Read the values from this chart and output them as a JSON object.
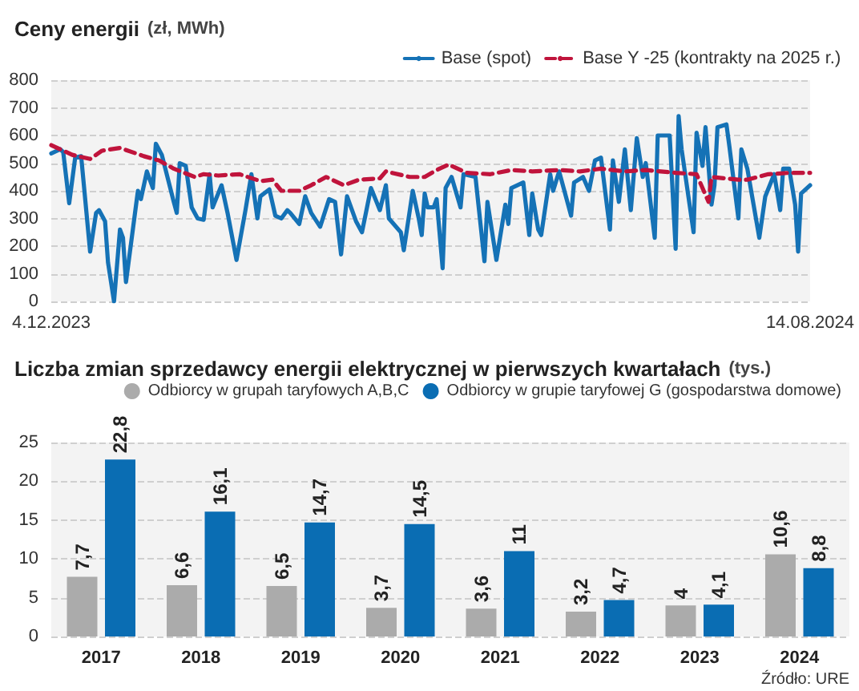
{
  "chart_data": [
    {
      "type": "line",
      "title": "Ceny energii",
      "subtitle": "(zł, MWh)",
      "marker": "none",
      "legend": "top right",
      "grid": "y",
      "xlim": [
        "2023-12-04",
        "2024-08-14"
      ],
      "xticks": [
        {
          "value": "2023-12-04",
          "label": "4.12.2023"
        },
        {
          "value": "2024-08-14",
          "label": "14.08.2024"
        }
      ],
      "ylim": [
        0,
        800
      ],
      "yticks": [
        0,
        100,
        200,
        300,
        400,
        500,
        600,
        700,
        800
      ],
      "series": [
        {
          "name": "Base (spot)",
          "color": "#1572b6",
          "line_style": "solid",
          "x": [
            "2023-12-04",
            "2023-12-07",
            "2023-12-08",
            "2023-12-10",
            "2023-12-12",
            "2023-12-14",
            "2023-12-17",
            "2023-12-19",
            "2023-12-20",
            "2023-12-22",
            "2023-12-23",
            "2023-12-25",
            "2023-12-27",
            "2023-12-28",
            "2023-12-29",
            "2024-01-02",
            "2024-01-03",
            "2024-01-05",
            "2024-01-07",
            "2024-01-08",
            "2024-01-10",
            "2024-01-14",
            "2024-01-15",
            "2024-01-16",
            "2024-01-18",
            "2024-01-20",
            "2024-01-22",
            "2024-01-24",
            "2024-01-26",
            "2024-01-27",
            "2024-01-30",
            "2024-02-01",
            "2024-02-04",
            "2024-02-07",
            "2024-02-09",
            "2024-02-11",
            "2024-02-12",
            "2024-02-15",
            "2024-02-17",
            "2024-02-19",
            "2024-02-21",
            "2024-02-22",
            "2024-02-25",
            "2024-02-27",
            "2024-02-29",
            "2024-03-03",
            "2024-03-06",
            "2024-03-08",
            "2024-03-10",
            "2024-03-12",
            "2024-03-15",
            "2024-03-17",
            "2024-03-20",
            "2024-03-23",
            "2024-03-25",
            "2024-03-26",
            "2024-03-30",
            "2024-03-31",
            "2024-04-03",
            "2024-04-05",
            "2024-04-06",
            "2024-04-07",
            "2024-04-08",
            "2024-04-10",
            "2024-04-11",
            "2024-04-13",
            "2024-04-14",
            "2024-04-16",
            "2024-04-19",
            "2024-04-20",
            "2024-04-24",
            "2024-04-27",
            "2024-04-28",
            "2024-05-01",
            "2024-05-04",
            "2024-05-05",
            "2024-05-06",
            "2024-05-10",
            "2024-05-12",
            "2024-05-13",
            "2024-05-15",
            "2024-05-16",
            "2024-05-19",
            "2024-05-20",
            "2024-05-22",
            "2024-05-26",
            "2024-05-27",
            "2024-05-30",
            "2024-06-01",
            "2024-06-03",
            "2024-06-05",
            "2024-06-08",
            "2024-06-09",
            "2024-06-11",
            "2024-06-13",
            "2024-06-15",
            "2024-06-17",
            "2024-06-19",
            "2024-06-20",
            "2024-06-23",
            "2024-06-24",
            "2024-06-28",
            "2024-06-30",
            "2024-07-01",
            "2024-07-02",
            "2024-07-06",
            "2024-07-07",
            "2024-07-09",
            "2024-07-10",
            "2024-07-12",
            "2024-07-13",
            "2024-07-14",
            "2024-07-17",
            "2024-07-18",
            "2024-07-21",
            "2024-07-22",
            "2024-07-24",
            "2024-07-28",
            "2024-07-30",
            "2024-08-02",
            "2024-08-04",
            "2024-08-05",
            "2024-08-07",
            "2024-08-09",
            "2024-08-10",
            "2024-08-11",
            "2024-08-14"
          ],
          "values": [
            535,
            550,
            540,
            355,
            520,
            525,
            180,
            320,
            330,
            290,
            140,
            0,
            260,
            230,
            70,
            400,
            370,
            470,
            410,
            570,
            530,
            360,
            320,
            500,
            490,
            340,
            300,
            295,
            460,
            340,
            420,
            320,
            150,
            330,
            460,
            300,
            380,
            405,
            310,
            300,
            330,
            320,
            280,
            380,
            320,
            270,
            370,
            360,
            170,
            380,
            290,
            250,
            410,
            330,
            420,
            300,
            250,
            185,
            400,
            300,
            240,
            390,
            340,
            340,
            370,
            120,
            410,
            450,
            340,
            460,
            450,
            145,
            360,
            150,
            350,
            280,
            410,
            430,
            240,
            390,
            260,
            240,
            460,
            400,
            470,
            310,
            430,
            450,
            400,
            510,
            520,
            260,
            510,
            360,
            550,
            330,
            590,
            450,
            500,
            230,
            600,
            600,
            190,
            670,
            550,
            250,
            610,
            490,
            630,
            350,
            420,
            630,
            640,
            560,
            300,
            550,
            480,
            230,
            380,
            460,
            330,
            480,
            480,
            350,
            180,
            390,
            420
          ]
        },
        {
          "name": "Base Y -25 (kontrakty na 2025 r.)",
          "color": "#c0143c",
          "line_style": "dashed",
          "x": [
            "2023-12-04",
            "2023-12-11",
            "2023-12-17",
            "2023-12-21",
            "2023-12-27",
            "2024-01-04",
            "2024-01-09",
            "2024-01-14",
            "2024-01-21",
            "2024-01-24",
            "2024-01-29",
            "2024-02-05",
            "2024-02-12",
            "2024-02-16",
            "2024-02-19",
            "2024-02-25",
            "2024-02-29",
            "2024-03-05",
            "2024-03-11",
            "2024-03-16",
            "2024-03-23",
            "2024-03-25",
            "2024-04-02",
            "2024-04-07",
            "2024-04-11",
            "2024-04-15",
            "2024-04-21",
            "2024-04-29",
            "2024-05-06",
            "2024-05-13",
            "2024-05-22",
            "2024-05-29",
            "2024-06-05",
            "2024-06-13",
            "2024-06-20",
            "2024-06-30",
            "2024-07-07",
            "2024-07-11",
            "2024-07-12",
            "2024-07-21",
            "2024-07-24",
            "2024-07-31",
            "2024-08-07",
            "2024-08-14"
          ],
          "values": [
            565,
            530,
            515,
            545,
            555,
            525,
            510,
            480,
            450,
            460,
            455,
            460,
            435,
            440,
            400,
            400,
            420,
            450,
            420,
            440,
            445,
            470,
            450,
            450,
            475,
            495,
            465,
            460,
            475,
            470,
            475,
            470,
            480,
            470,
            475,
            465,
            460,
            360,
            450,
            440,
            440,
            460,
            465,
            465
          ]
        }
      ]
    },
    {
      "type": "bar",
      "title": "Liczba zmian sprzedawcy energii elektrycznej w pierwszych kwartałach",
      "subtitle": "(tys.)",
      "legend": "top right",
      "grid": "y",
      "categories": [
        "2017",
        "2018",
        "2019",
        "2020",
        "2021",
        "2022",
        "2023",
        "2024"
      ],
      "ylim": [
        0,
        25
      ],
      "yticks": [
        0,
        5,
        10,
        15,
        20,
        25
      ],
      "annotations": [
        "Źródło: URE"
      ],
      "series": [
        {
          "name": "Odbiorcy w grupah taryfowych A,B,C",
          "color": "#ababab",
          "values": [
            7.7,
            6.6,
            6.5,
            3.7,
            3.6,
            3.2,
            4,
            10.6
          ],
          "value_labels": [
            "7,7",
            "6,6",
            "6,5",
            "3,7",
            "3,6",
            "3,2",
            "4",
            "10,6"
          ]
        },
        {
          "name": "Odbiorcy w grupie taryfowej G (gospodarstwa domowe)",
          "color": "#0a6db3",
          "values": [
            22.8,
            16.1,
            14.7,
            14.5,
            11,
            4.7,
            4.1,
            8.8
          ],
          "value_labels": [
            "22,8",
            "16,1",
            "14,7",
            "14,5",
            "11",
            "4,7",
            "4,1",
            "8,8"
          ]
        }
      ]
    }
  ]
}
